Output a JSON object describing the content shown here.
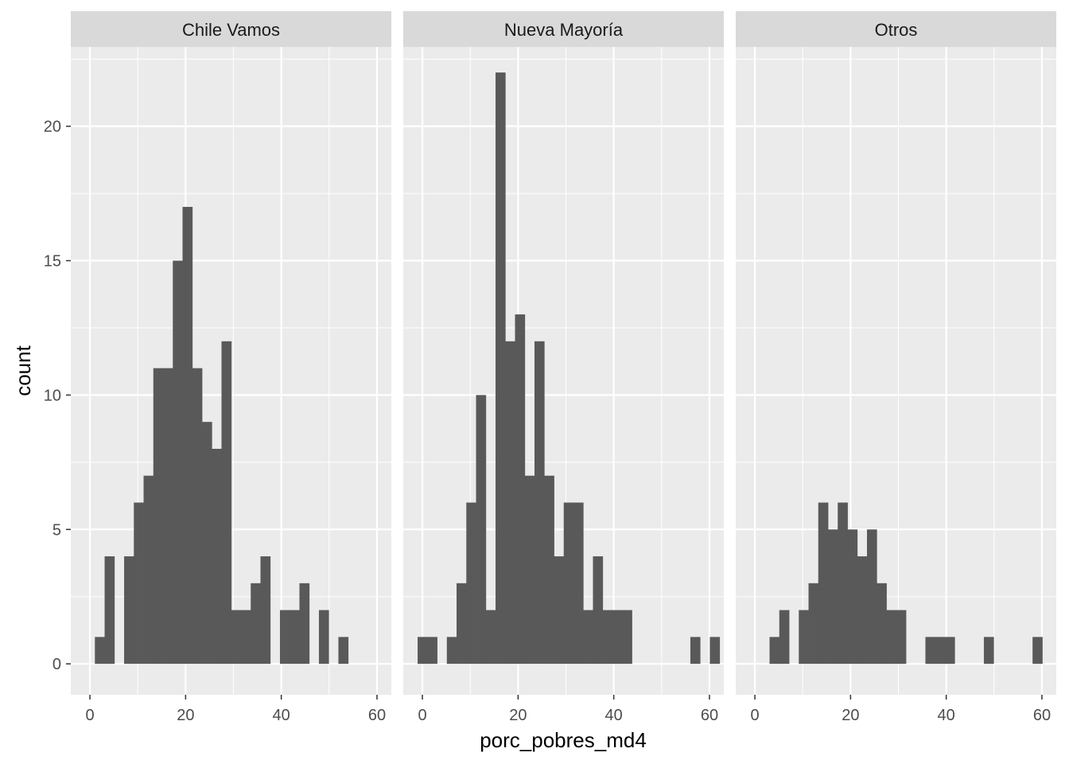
{
  "chart_data": {
    "type": "histogram-faceted",
    "xlabel": "porc_pobres_md4",
    "ylabel": "count",
    "xlim": [
      -4,
      63
    ],
    "ylim": [
      -1.15,
      22.95
    ],
    "x_ticks": [
      0,
      20,
      40,
      60
    ],
    "y_ticks": [
      0,
      5,
      10,
      15,
      20
    ],
    "grid": true,
    "bin_start": -1.0,
    "bin_width": 2.036,
    "colors": {
      "bar": "#595959",
      "panel": "#ebebeb",
      "strip": "#d9d9d9",
      "grid_major": "#ffffff"
    },
    "facets": [
      {
        "label": "Chile Vamos",
        "counts": [
          0,
          1,
          4,
          0,
          4,
          6,
          7,
          11,
          11,
          15,
          17,
          11,
          9,
          8,
          12,
          2,
          2,
          3,
          4,
          0,
          2,
          2,
          3,
          0,
          2,
          0,
          1,
          0,
          0,
          0,
          0,
          0
        ]
      },
      {
        "label": "Nueva Mayoría",
        "counts": [
          1,
          1,
          0,
          1,
          3,
          6,
          10,
          2,
          22,
          12,
          13,
          7,
          12,
          7,
          4,
          6,
          6,
          2,
          4,
          2,
          2,
          2,
          0,
          0,
          0,
          0,
          0,
          0,
          1,
          0,
          1,
          0
        ]
      },
      {
        "label": "Otros",
        "counts": [
          0,
          0,
          1,
          2,
          0,
          2,
          3,
          6,
          5,
          6,
          5,
          4,
          5,
          3,
          2,
          2,
          0,
          0,
          1,
          1,
          1,
          0,
          0,
          0,
          1,
          0,
          0,
          0,
          0,
          1,
          0,
          0
        ]
      }
    ]
  }
}
